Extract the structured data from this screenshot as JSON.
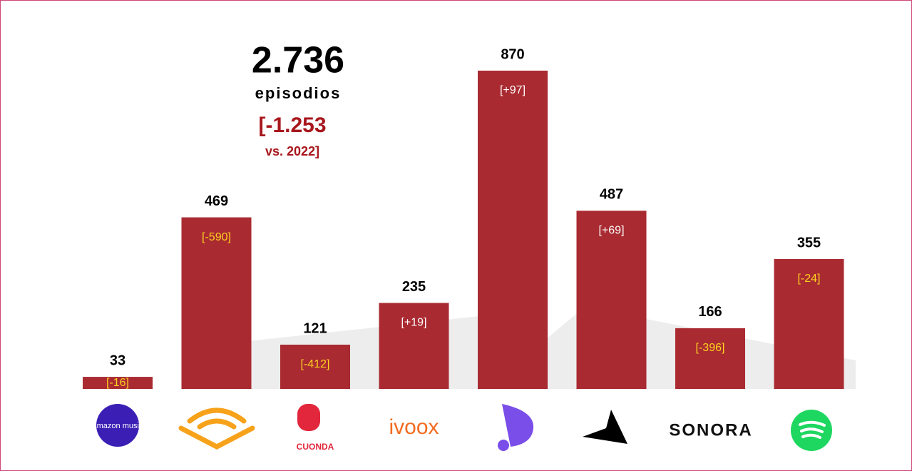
{
  "chart_data": {
    "type": "bar",
    "annotations": {
      "total": "2.736",
      "unit": "episodios",
      "change": "[-1.253",
      "change_ref": "vs. 2022]"
    },
    "categories": [
      "amazon music",
      null,
      "CUONDA",
      "ivoox",
      null,
      null,
      "SONORA",
      null
    ],
    "values": [
      33,
      469,
      121,
      235,
      870,
      487,
      166,
      355
    ],
    "changes": [
      {
        "value": -16,
        "label": "[-16]"
      },
      {
        "value": -590,
        "label": "[-590]"
      },
      {
        "value": -412,
        "label": "[-412]"
      },
      {
        "value": 19,
        "label": "[+19]"
      },
      {
        "value": 97,
        "label": "[+97]"
      },
      {
        "value": 69,
        "label": "[+69]"
      },
      {
        "value": -396,
        "label": "[-396]"
      },
      {
        "value": -24,
        "label": "[-24]"
      }
    ],
    "color": "#a92a31",
    "positive_color": "#ffffff",
    "negative_color": "#ffd21f"
  }
}
